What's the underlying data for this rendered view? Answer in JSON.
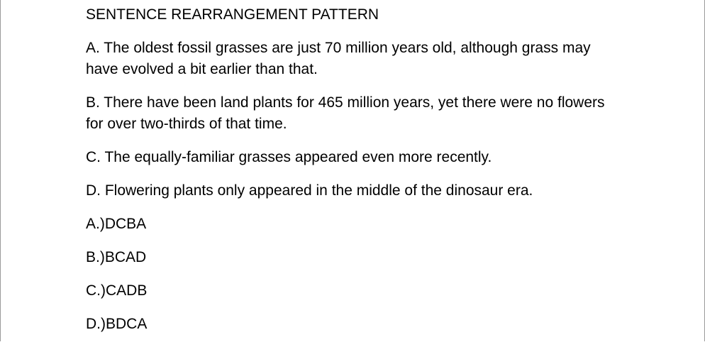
{
  "document": {
    "title": "SENTENCE REARRANGEMENT  PATTERN",
    "sentences": [
      "A. The oldest fossil grasses are just 70 million years old, although grass may have evolved a bit earlier than that.",
      "B. There have been land plants for 465 million years, yet there were no flowers for over two-thirds of that time.",
      "C. The equally-familiar grasses appeared even more recently.",
      "D. Flowering plants only appeared in the middle of the dinosaur era."
    ],
    "options": [
      "A.)DCBA",
      "B.)BCAD",
      "C.)CADB",
      "D.)BDCA"
    ]
  }
}
